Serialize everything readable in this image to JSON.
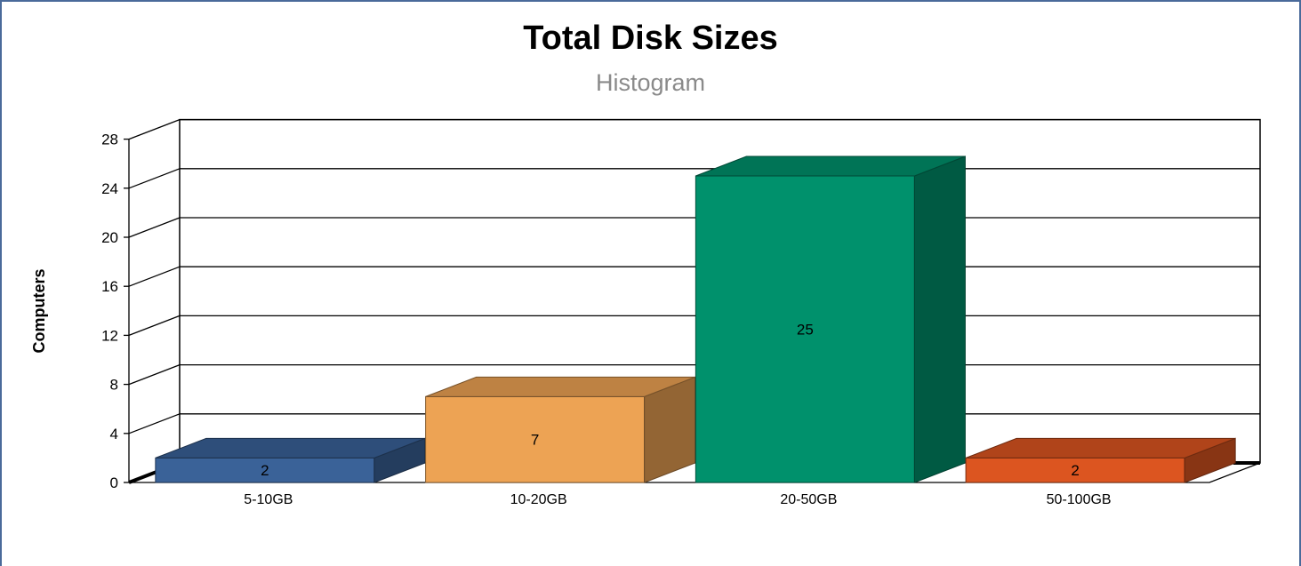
{
  "chart_data": {
    "type": "bar",
    "title": "Total Disk Sizes",
    "subtitle": "Histogram",
    "xlabel": "",
    "ylabel": "Computers",
    "ylim": [
      0,
      28
    ],
    "yticks": [
      0,
      4,
      8,
      12,
      16,
      20,
      24,
      28
    ],
    "ytick_labels": [
      "0",
      "4",
      "8",
      "12",
      "16",
      "20",
      "24",
      "28"
    ],
    "categories": [
      "5-10GB",
      "10-20GB",
      "20-50GB",
      "50-100GB"
    ],
    "values": [
      2,
      7,
      25,
      2
    ],
    "value_labels": [
      "2",
      "7",
      "25",
      "2"
    ],
    "colors": [
      "#3a6298",
      "#eda354",
      "#00916c",
      "#dc5520"
    ],
    "grid": true,
    "legend": "none",
    "style": "3d"
  }
}
